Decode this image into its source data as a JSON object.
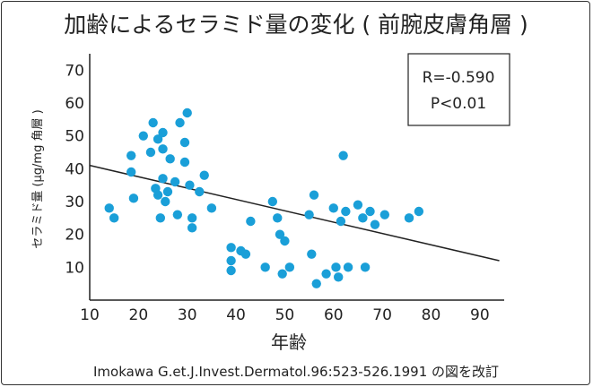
{
  "chart_data": {
    "type": "scatter",
    "title": "加齢によるセラミド量の変化 ( 前腕皮膚角層 )",
    "xlabel": "年齢",
    "ylabel": "セラミド量 (µg/mg 角層 )",
    "xlim": [
      10,
      95
    ],
    "ylim": [
      0,
      75
    ],
    "xticks": [
      "10",
      "20",
      "30",
      "40",
      "50",
      "60",
      "70",
      "80",
      "90"
    ],
    "yticks": [
      "10",
      "20",
      "30",
      "40",
      "50",
      "60",
      "70"
    ],
    "stats": [
      "R=-0.590",
      "P<0.01"
    ],
    "source": "Imokawa G.et.J.Invest.Dermatol.96:523-526.1991 の図を改訂",
    "trendline": {
      "x": [
        10,
        94
      ],
      "y": [
        41,
        12
      ]
    },
    "marker_color": "#1a9fd8",
    "points": [
      {
        "x": 14,
        "y": 28
      },
      {
        "x": 15,
        "y": 25
      },
      {
        "x": 18.5,
        "y": 44
      },
      {
        "x": 18.5,
        "y": 39
      },
      {
        "x": 19,
        "y": 31
      },
      {
        "x": 21,
        "y": 50
      },
      {
        "x": 22.5,
        "y": 45
      },
      {
        "x": 23,
        "y": 54
      },
      {
        "x": 23.5,
        "y": 34
      },
      {
        "x": 24,
        "y": 49
      },
      {
        "x": 24,
        "y": 32
      },
      {
        "x": 24.5,
        "y": 25
      },
      {
        "x": 25,
        "y": 51
      },
      {
        "x": 25,
        "y": 46
      },
      {
        "x": 25,
        "y": 37
      },
      {
        "x": 25.5,
        "y": 30
      },
      {
        "x": 26,
        "y": 33
      },
      {
        "x": 26.5,
        "y": 43
      },
      {
        "x": 27.5,
        "y": 36
      },
      {
        "x": 28,
        "y": 26
      },
      {
        "x": 28.5,
        "y": 54
      },
      {
        "x": 29.5,
        "y": 48
      },
      {
        "x": 29.5,
        "y": 42
      },
      {
        "x": 30,
        "y": 57
      },
      {
        "x": 30.5,
        "y": 35
      },
      {
        "x": 31,
        "y": 25
      },
      {
        "x": 31,
        "y": 22
      },
      {
        "x": 32.5,
        "y": 33
      },
      {
        "x": 33.5,
        "y": 38
      },
      {
        "x": 35,
        "y": 28
      },
      {
        "x": 39,
        "y": 16
      },
      {
        "x": 39,
        "y": 12
      },
      {
        "x": 39,
        "y": 9
      },
      {
        "x": 41,
        "y": 15
      },
      {
        "x": 42,
        "y": 14
      },
      {
        "x": 43,
        "y": 24
      },
      {
        "x": 46,
        "y": 10
      },
      {
        "x": 47.5,
        "y": 30
      },
      {
        "x": 48.5,
        "y": 25
      },
      {
        "x": 49,
        "y": 20
      },
      {
        "x": 49.5,
        "y": 8
      },
      {
        "x": 50,
        "y": 18
      },
      {
        "x": 51,
        "y": 10
      },
      {
        "x": 55,
        "y": 26
      },
      {
        "x": 55.5,
        "y": 14
      },
      {
        "x": 56,
        "y": 32
      },
      {
        "x": 56.5,
        "y": 5
      },
      {
        "x": 58.5,
        "y": 8
      },
      {
        "x": 60,
        "y": 28
      },
      {
        "x": 60.5,
        "y": 10
      },
      {
        "x": 61,
        "y": 7
      },
      {
        "x": 61.5,
        "y": 24
      },
      {
        "x": 62,
        "y": 44
      },
      {
        "x": 62.5,
        "y": 27
      },
      {
        "x": 63,
        "y": 10
      },
      {
        "x": 65,
        "y": 29
      },
      {
        "x": 66,
        "y": 25
      },
      {
        "x": 66.5,
        "y": 10
      },
      {
        "x": 67.5,
        "y": 27
      },
      {
        "x": 68.5,
        "y": 23
      },
      {
        "x": 70.5,
        "y": 26
      },
      {
        "x": 75.5,
        "y": 25
      },
      {
        "x": 77.5,
        "y": 27
      }
    ]
  }
}
